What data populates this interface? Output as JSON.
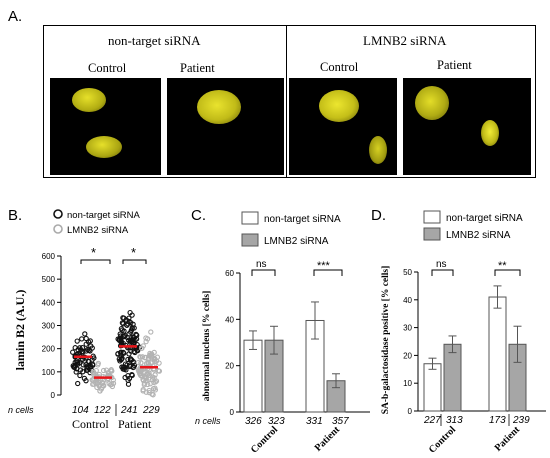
{
  "panel_a": {
    "letter": "A.",
    "groups": [
      {
        "title": "non-target siRNA",
        "conditions": [
          "Control",
          "Patient"
        ]
      },
      {
        "title": "LMNB2 siRNA",
        "conditions": [
          "Control",
          "Patient"
        ]
      }
    ],
    "nucleus_color": "#d8d51c"
  },
  "panel_b": {
    "letter": "B.",
    "legend": [
      "non-target siRNA",
      "LMNB2 siRNA"
    ],
    "ylabel": "lamin B2 (A.U.)",
    "n_label": "n cells",
    "n_values": [
      "104",
      "122",
      "241",
      "229"
    ],
    "group_labels": [
      "Control",
      "Patient"
    ],
    "significance": [
      "*",
      "*"
    ],
    "yticks": [
      "0",
      "100",
      "200",
      "300",
      "400",
      "500",
      "600"
    ]
  },
  "panel_c": {
    "letter": "C.",
    "legend": [
      "non-target siRNA",
      "LMNB2 siRNA"
    ],
    "ylabel": "abnormal nucleus [% cells]",
    "n_label": "n cells",
    "n_values": [
      "326",
      "323",
      "331",
      "357"
    ],
    "group_labels": [
      "Control",
      "Patient"
    ],
    "significance": [
      "ns",
      "***"
    ],
    "yticks": [
      "0",
      "20",
      "40",
      "60"
    ]
  },
  "panel_d": {
    "letter": "D.",
    "legend": [
      "non-target siRNA",
      "LMNB2 siRNA"
    ],
    "ylabel": "SA-b-galactosidase positive [% cells]",
    "n_values": [
      "227",
      "313",
      "173",
      "239"
    ],
    "group_labels": [
      "Control",
      "Patient"
    ],
    "significance": [
      "ns",
      "**"
    ],
    "yticks": [
      "0",
      "10",
      "20",
      "30",
      "40",
      "50"
    ]
  },
  "colors": {
    "non_target": "#ffffff",
    "lmnb2": "#a6a6a6",
    "mean_line": "#e8161b",
    "dark_dot": "#111111",
    "light_dot": "#b3b3b3"
  },
  "chart_data": [
    {
      "type": "scatter",
      "ylabel": "lamin B2 (A.U.)",
      "ylim": [
        0,
        600
      ],
      "categories": [
        "Control",
        "Patient"
      ],
      "series": [
        {
          "name": "non-target siRNA",
          "means": [
            165,
            210
          ]
        },
        {
          "name": "LMNB2 siRNA",
          "means": [
            75,
            120
          ]
        }
      ]
    },
    {
      "type": "bar",
      "ylabel": "abnormal nucleus [% cells]",
      "ylim": [
        0,
        60
      ],
      "categories": [
        "Control",
        "Patient"
      ],
      "series": [
        {
          "name": "non-target siRNA",
          "values": [
            31,
            39.5
          ],
          "errors": [
            4,
            8
          ]
        },
        {
          "name": "LMNB2 siRNA",
          "values": [
            31,
            13.5
          ],
          "errors": [
            6,
            3
          ]
        }
      ]
    },
    {
      "type": "bar",
      "ylabel": "SA-b-galactosidase positive [% cells]",
      "ylim": [
        0,
        50
      ],
      "categories": [
        "Control",
        "Patient"
      ],
      "series": [
        {
          "name": "non-target siRNA",
          "values": [
            17,
            41
          ],
          "errors": [
            2,
            4
          ]
        },
        {
          "name": "LMNB2 siRNA",
          "values": [
            24,
            24
          ],
          "errors": [
            3,
            6.5
          ]
        }
      ]
    }
  ]
}
